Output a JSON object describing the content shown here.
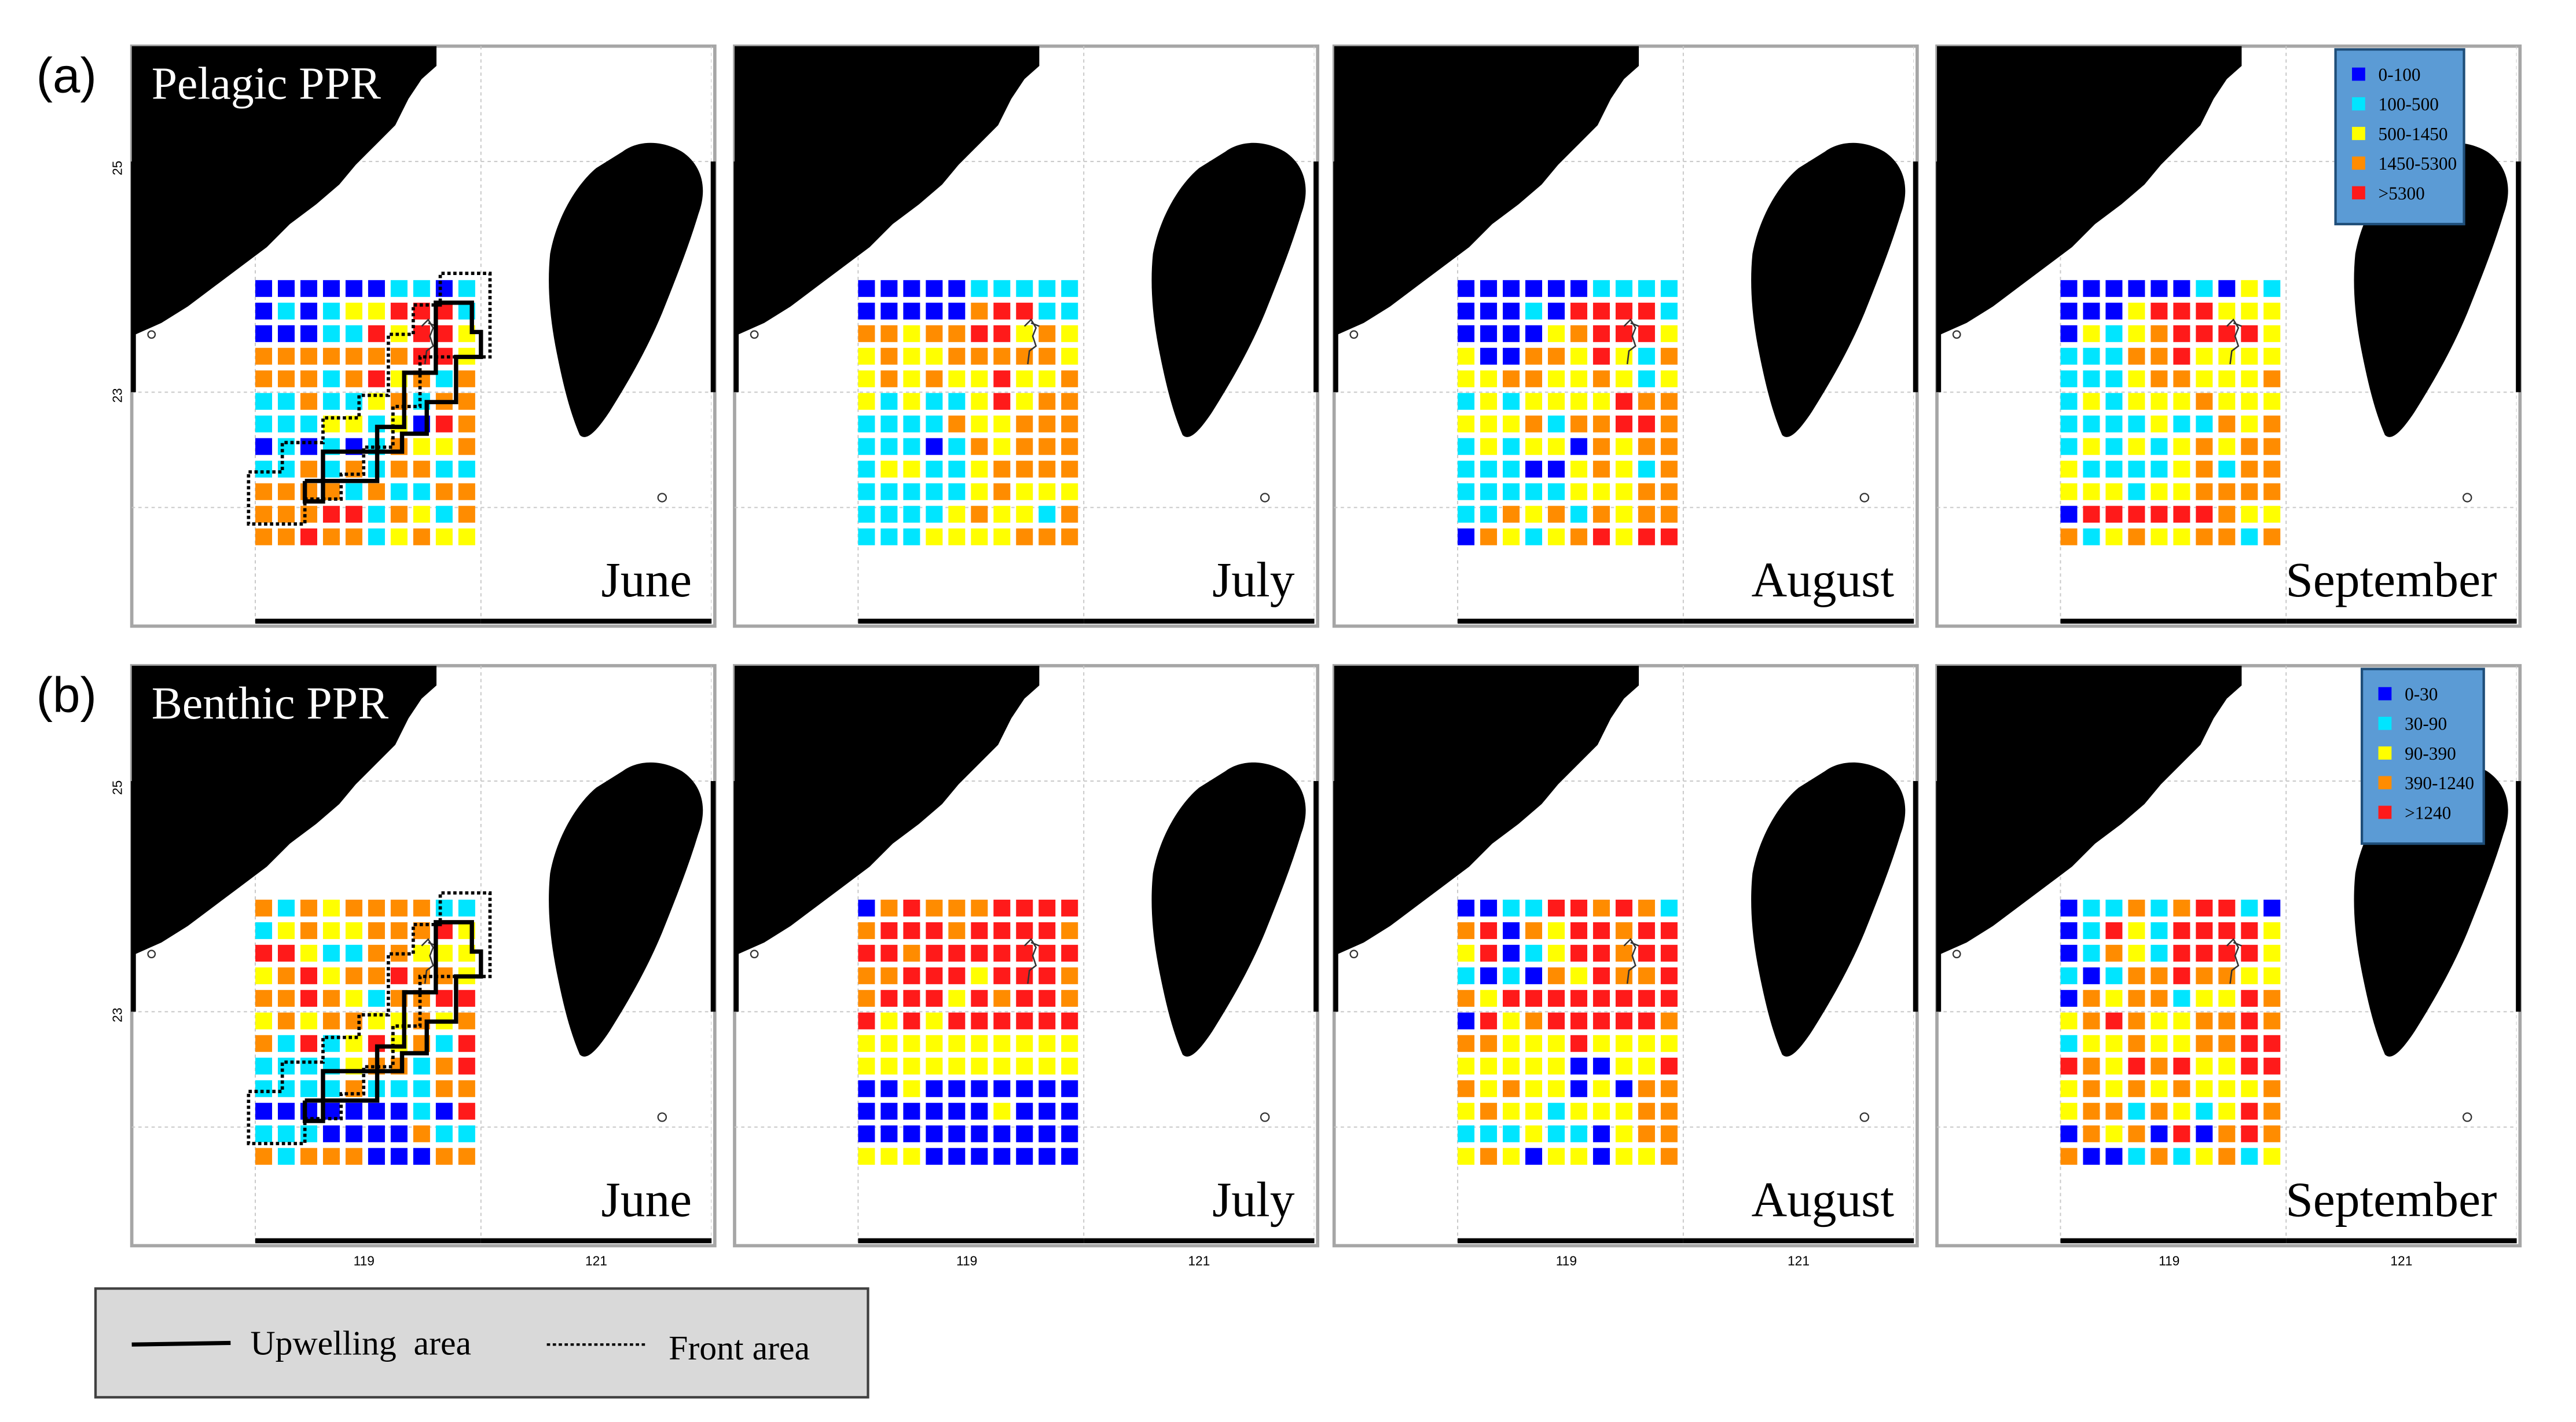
{
  "rows": [
    {
      "id": "a",
      "panel_label": "(a)",
      "title": "Pelagic PPR",
      "legend": [
        "0-100",
        "100-500",
        "500-1450",
        "1450-5300",
        ">5300"
      ],
      "months": [
        "June",
        "July",
        "August",
        "September"
      ],
      "grids": [
        [
          "BBBBBBCCBC",
          "BCBCYYRRRC",
          "BBBCCRYRRY",
          "OOOOOOORRY",
          "OOOCORYOCO",
          "CCOCCYOCOO",
          "CCCYYCYBRO",
          "BCBCBCOYYO",
          "CCOCOCOOCC",
          "OOOOCOCCOO",
          "OOORRCOYCO",
          "OOROOCYOYY"
        ],
        [
          "BBBBBCCCCC",
          "BBBBBORRCC",
          "OOYOORRYOY",
          "YOYYOOOOOY",
          "YOYOYYRYYO",
          "YCYCCYRYOO",
          "CCCCOYYOOO",
          "CCCBCOYOOO",
          "CYYCCYOOOO",
          "CCCCCYOYYY",
          "CCCCYOYYCO",
          "CCCYYYYOOO"
        ],
        [
          "BBBBBBCCCC",
          "BBBCBRRRRC",
          "BBBBYORRRY",
          "YBBOOYRYCO",
          "YYOOYYOYCY",
          "CYCYYYYROO",
          "YYYOCOORRO",
          "CYCYYBOYOO",
          "CCCBBYOYCO",
          "CCCCCYYYOO",
          "CCOYOCOYOO",
          "BOYCYORYRR"
        ],
        [
          "BBBBBBCBYC",
          "BBBYRRRYYY",
          "BYCYORRRRY",
          "CCCOORYYYY",
          "CCCYOOYYYO",
          "CYCYYYOYYY",
          "CCCCYCCOYO",
          "CYCYCYOYOO",
          "YCCCCYOCOO",
          "YYYCYYOOOO",
          "BRRRRRROYY",
          "OCYOYYOOCO"
        ]
      ],
      "sea_labels": [
        [
          "",
          "",
          ""
        ],
        [
          "",
          "",
          ""
        ],
        [
          "",
          "",
          ""
        ],
        [
          "",
          "",
          ""
        ]
      ]
    },
    {
      "id": "b",
      "panel_label": "(b)",
      "title": "Benthic PPR",
      "legend": [
        "0-30",
        "30-90",
        "90-390",
        "390-1240",
        ">1240"
      ],
      "months": [
        "June",
        "July",
        "August",
        "September"
      ],
      "grids": [
        [
          "OCOYOOOOCC",
          "CYOYYOOORY",
          "RRYCCOOYYY",
          "YORYOOROOY",
          "OOROYCOORR",
          "YOYOOYYOYO",
          "OCRCYRYOCR",
          "CCCCYOOCOR",
          "CCCCOCCCOO",
          "BBBBBBBCBR",
          "CCCBBBBOCC",
          "OCOOOBBBOO"
        ],
        [
          "BOROOORRRR",
          "ORRRORRRRO",
          "RRORRRRRRR",
          "OORRRYRRRO",
          "ORRRYRORRO",
          "RYRYRRRRRR",
          "YYYYYYYYYY",
          "YYYYYYYYYY",
          "BBYBBBBBBB",
          "BBBBBBYBBB",
          "BBBBBBBBBB",
          "YYYBBBBBBB"
        ],
        [
          "BBCCRROROC",
          "ORBOYRRORR",
          "YRBCYRRORR",
          "CBCBOYROOR",
          "OYRRRRRRRR",
          "BRYORRRRRO",
          "OOYYYRYYYY",
          "YYYYYBBYYR",
          "OYOYYBYBOO",
          "YOYYCYYYOO",
          "CCCYCCBYOO",
          "YOYBYYBYYO"
        ],
        [
          "BCCOCORRCB",
          "BCRYCRRRRY",
          "BCOYCRRRRY",
          "CBCOOROOYY",
          "BOYOOCYYRO",
          "YOROYYOORO",
          "CYYOYYOORR",
          "ROYRORYYRR",
          "YOYOYOYYYO",
          "YOOCOYCYRO",
          "BOYOBRBORO",
          "OBBCOCYOCY"
        ]
      ],
      "sea_labels": [
        [
          "",
          "",
          ""
        ],
        [
          "",
          "",
          ""
        ],
        [
          "",
          "",
          ""
        ],
        [
          "",
          "",
          ""
        ]
      ]
    }
  ],
  "axis": {
    "lat_labels": [
      "25",
      "23"
    ],
    "lon_labels": [
      "119",
      "121"
    ]
  },
  "bottom_legend": {
    "upwelling_label": "Upwelling  area",
    "front_label": "Front area"
  },
  "colors": {
    "B": "#0000ff",
    "C": "#00e5ff",
    "Y": "#ffff00",
    "O": "#ff8c00",
    "R": "#ff1a1a",
    "land": "#000000",
    "legend_bg": "#5b9bd5",
    "legend_border": "#1f4e79",
    "bottom_legend_bg": "#d9d9d9"
  }
}
